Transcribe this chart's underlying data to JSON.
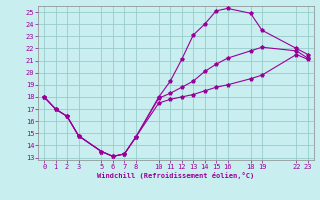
{
  "xlabel": "Windchill (Refroidissement éolien,°C)",
  "bg_color": "#c8eef0",
  "grid_color": "#99cccc",
  "line_color": "#990099",
  "xlim": [
    -0.5,
    23.5
  ],
  "ylim": [
    12.8,
    25.5
  ],
  "xticks": [
    0,
    1,
    2,
    3,
    5,
    6,
    7,
    8,
    10,
    11,
    12,
    13,
    14,
    15,
    16,
    18,
    19,
    22,
    23
  ],
  "yticks": [
    13,
    14,
    15,
    16,
    17,
    18,
    19,
    20,
    21,
    22,
    23,
    24,
    25
  ],
  "line_upper_x": [
    0,
    1,
    2,
    3,
    5,
    6,
    7,
    8,
    10,
    11,
    12,
    13,
    14,
    15,
    16,
    18,
    19,
    22,
    23
  ],
  "line_upper_y": [
    18,
    17,
    16.4,
    14.8,
    13.5,
    13.1,
    13.3,
    14.7,
    18.0,
    19.3,
    21.1,
    23.1,
    24.0,
    25.1,
    25.3,
    24.9,
    23.5,
    22.0,
    21.5
  ],
  "line_mid_x": [
    0,
    1,
    2,
    3,
    5,
    6,
    7,
    8,
    10,
    11,
    12,
    13,
    14,
    15,
    16,
    18,
    19,
    22,
    23
  ],
  "line_mid_y": [
    18,
    17,
    16.4,
    14.8,
    13.5,
    13.1,
    13.3,
    14.7,
    17.9,
    18.3,
    18.8,
    19.3,
    20.1,
    20.7,
    21.2,
    21.8,
    22.1,
    21.8,
    21.2
  ],
  "line_low_x": [
    0,
    1,
    2,
    3,
    5,
    6,
    7,
    8,
    10,
    11,
    12,
    13,
    14,
    15,
    16,
    18,
    19,
    22,
    23
  ],
  "line_low_y": [
    18,
    17,
    16.4,
    14.8,
    13.5,
    13.1,
    13.3,
    14.7,
    17.5,
    17.8,
    18.0,
    18.2,
    18.5,
    18.8,
    19.0,
    19.5,
    19.8,
    21.5,
    21.1
  ]
}
